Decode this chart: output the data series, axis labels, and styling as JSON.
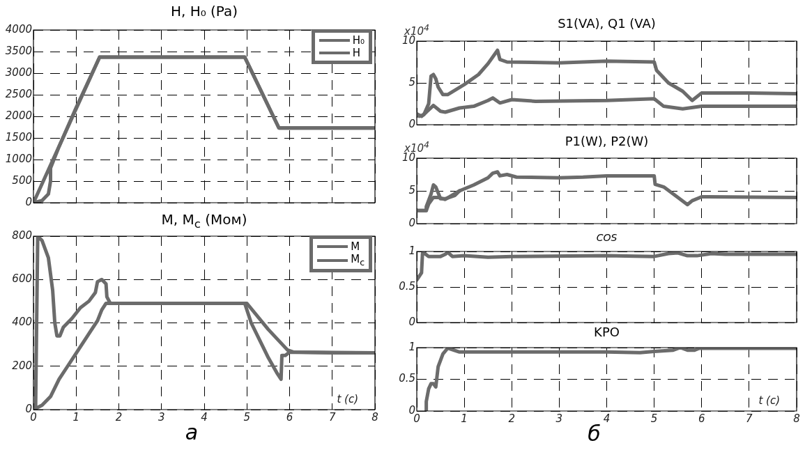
{
  "chart_data": [
    {
      "type": "line",
      "title": "H, H₀ (Pa)",
      "xlim": [
        0,
        8
      ],
      "xticks": [
        0,
        1,
        2,
        3,
        4,
        5,
        6,
        7,
        8
      ],
      "ylim": [
        0,
        4000
      ],
      "yticks": [
        0,
        500,
        1000,
        1500,
        2000,
        2500,
        3000,
        3500,
        4000
      ],
      "grid": true,
      "tick_labels": "y",
      "legend": "top right",
      "series": [
        {
          "name": "H₀",
          "color": "#6b6b6b",
          "x": [
            0,
            1.55,
            4.95,
            5.75,
            8
          ],
          "values": [
            0,
            3370,
            3370,
            1730,
            1730
          ]
        },
        {
          "name": "H",
          "color": "#6b6b6b",
          "x": [
            0,
            0.2,
            0.35,
            0.4,
            0.4,
            0.6,
            1.0,
            1.55,
            4.95,
            5.75,
            8
          ],
          "values": [
            0,
            50,
            200,
            500,
            800,
            1300,
            2200,
            3370,
            3370,
            1730,
            1730
          ]
        }
      ]
    },
    {
      "type": "line",
      "title": "M, M$_{c}$ (Mом)",
      "xlabel": "t (c)",
      "xlim": [
        0,
        8
      ],
      "xticks": [
        0,
        1,
        2,
        3,
        4,
        5,
        6,
        7,
        8
      ],
      "ylim": [
        0,
        800
      ],
      "yticks": [
        0,
        200,
        400,
        600,
        800
      ],
      "grid": true,
      "legend": "top right",
      "annotations": [
        "а"
      ],
      "series": [
        {
          "name": "M",
          "color": "#6b6b6b",
          "x": [
            0,
            0.05,
            0.1,
            0.2,
            0.35,
            0.45,
            0.5,
            0.55,
            0.62,
            0.7,
            0.9,
            1.1,
            1.3,
            1.45,
            1.5,
            1.6,
            1.7,
            1.72,
            1.8,
            2,
            3,
            4,
            4.95,
            5.1,
            5.3,
            5.5,
            5.7,
            5.8,
            5.82,
            5.9,
            6,
            7,
            8
          ],
          "values": [
            0,
            0,
            800,
            780,
            700,
            550,
            400,
            340,
            340,
            380,
            420,
            470,
            500,
            540,
            590,
            600,
            580,
            520,
            490,
            490,
            490,
            490,
            490,
            400,
            320,
            240,
            170,
            140,
            250,
            250,
            265,
            262,
            262
          ]
        },
        {
          "name": "M$_{c}$",
          "color": "#6b6b6b",
          "x": [
            0,
            0.2,
            0.4,
            0.6,
            0.8,
            1,
            1.2,
            1.4,
            1.5,
            1.6,
            1.7,
            5,
            5.5,
            5.95,
            6.1,
            8
          ],
          "values": [
            0,
            20,
            60,
            140,
            200,
            260,
            320,
            380,
            410,
            460,
            490,
            490,
            370,
            275,
            265,
            262
          ]
        }
      ]
    },
    {
      "type": "line",
      "title": "S1(VA), Q1 (VA)",
      "xlim": [
        0,
        8
      ],
      "xticks": [
        0,
        1,
        2,
        3,
        4,
        5,
        6,
        7,
        8
      ],
      "ylim": [
        0,
        10
      ],
      "yticks": [
        0,
        5,
        10
      ],
      "grid": true,
      "tick_labels": "y",
      "annotations": [
        "x10$^{4}$"
      ],
      "series": [
        {
          "color": "#6b6b6b",
          "x": [
            0,
            0.05,
            0.15,
            0.25,
            0.3,
            0.35,
            0.4,
            0.45,
            0.55,
            0.65,
            1,
            1.3,
            1.5,
            1.65,
            1.7,
            1.75,
            1.9,
            3,
            4,
            5,
            5.05,
            5.3,
            5.6,
            5.8,
            6,
            7,
            8
          ],
          "values": [
            1.3,
            1.0,
            1.2,
            2.5,
            5.8,
            6.0,
            5.5,
            4.5,
            3.6,
            3.6,
            4.8,
            6.0,
            7.3,
            8.5,
            8.9,
            7.8,
            7.5,
            7.4,
            7.6,
            7.5,
            6.5,
            5.0,
            4.0,
            2.9,
            3.8,
            3.8,
            3.7
          ]
        },
        {
          "color": "#6b6b6b",
          "x": [
            0,
            0.1,
            0.2,
            0.35,
            0.5,
            0.6,
            0.9,
            1.2,
            1.5,
            1.6,
            1.75,
            2,
            2.5,
            4,
            5,
            5.2,
            5.6,
            6,
            8
          ],
          "values": [
            1.3,
            1.0,
            1.5,
            2.3,
            1.6,
            1.5,
            2.0,
            2.2,
            2.9,
            3.2,
            2.6,
            3.0,
            2.8,
            2.9,
            3.1,
            2.2,
            1.9,
            2.2,
            2.2
          ]
        }
      ]
    },
    {
      "type": "line",
      "title": "P1(W), P2(W)",
      "xlim": [
        0,
        8
      ],
      "xticks": [
        0,
        1,
        2,
        3,
        4,
        5,
        6,
        7,
        8
      ],
      "ylim": [
        0,
        10
      ],
      "yticks": [
        0,
        5,
        10
      ],
      "grid": true,
      "tick_labels": "y",
      "annotations": [
        "x10$^{4}$"
      ],
      "series": [
        {
          "color": "#6b6b6b",
          "x": [
            0,
            0.2,
            0.2,
            0.3,
            0.35,
            0.4,
            0.5,
            0.6,
            0.8,
            0.9,
            1.2,
            1.5,
            1.6,
            1.7,
            1.75,
            1.9,
            2.1,
            3,
            3.5,
            4,
            5,
            5.02,
            5.2,
            5.5,
            5.7,
            5.8,
            6,
            8
          ],
          "values": [
            2.0,
            2.0,
            2.6,
            4.5,
            5.9,
            5.6,
            3.8,
            3.8,
            4.3,
            5.0,
            5.9,
            7.0,
            7.7,
            7.9,
            7.3,
            7.5,
            7.1,
            7.0,
            7.1,
            7.3,
            7.3,
            6.0,
            5.6,
            4.0,
            2.9,
            3.5,
            4.1,
            4.0
          ]
        },
        {
          "color": "#6b6b6b",
          "x": [
            0,
            0.2,
            0.25,
            0.35,
            0.45,
            0.6,
            0.9
          ],
          "values": [
            2.0,
            2.0,
            3.0,
            4.0,
            4.0,
            3.7,
            5.0
          ]
        }
      ]
    },
    {
      "type": "line",
      "title": "COS",
      "xlim": [
        0,
        8
      ],
      "xticks": [
        0,
        1,
        2,
        3,
        4,
        5,
        6,
        7,
        8
      ],
      "ylim": [
        0,
        1
      ],
      "yticks": [
        0,
        0.5,
        1
      ],
      "grid": true,
      "tick_labels": "y",
      "series": [
        {
          "color": "#6b6b6b",
          "x": [
            0,
            0.1,
            0.12,
            0.15,
            0.25,
            0.5,
            0.6,
            0.65,
            0.75,
            1,
            1.5,
            2,
            4,
            5,
            5.3,
            5.5,
            5.7,
            5.9,
            6.2,
            6.5,
            8
          ],
          "values": [
            0.6,
            0.7,
            0.97,
            0.98,
            0.93,
            0.93,
            0.96,
            0.99,
            0.93,
            0.94,
            0.92,
            0.93,
            0.94,
            0.93,
            0.97,
            0.98,
            0.94,
            0.94,
            0.97,
            0.96,
            0.96
          ]
        }
      ]
    },
    {
      "type": "line",
      "title": "KPO",
      "xlabel": "t (c)",
      "xlim": [
        0,
        8
      ],
      "xticks": [
        0,
        1,
        2,
        3,
        4,
        5,
        6,
        7,
        8
      ],
      "ylim": [
        0,
        1
      ],
      "yticks": [
        0,
        0.5,
        1
      ],
      "grid": true,
      "annotations": [
        "б"
      ],
      "series": [
        {
          "color": "#6b6b6b",
          "x": [
            0.2,
            0.2,
            0.25,
            0.3,
            0.35,
            0.4,
            0.45,
            0.55,
            0.65,
            0.7,
            0.9,
            2,
            4,
            4.7,
            5,
            5.4,
            5.55,
            5.7,
            5.85,
            5.95,
            8
          ],
          "values": [
            0,
            0.15,
            0.35,
            0.43,
            0.43,
            0.38,
            0.7,
            0.9,
            0.99,
            0.98,
            0.93,
            0.93,
            0.93,
            0.92,
            0.94,
            0.96,
            1.0,
            0.96,
            0.96,
            0.99,
            0.99
          ]
        }
      ]
    }
  ]
}
